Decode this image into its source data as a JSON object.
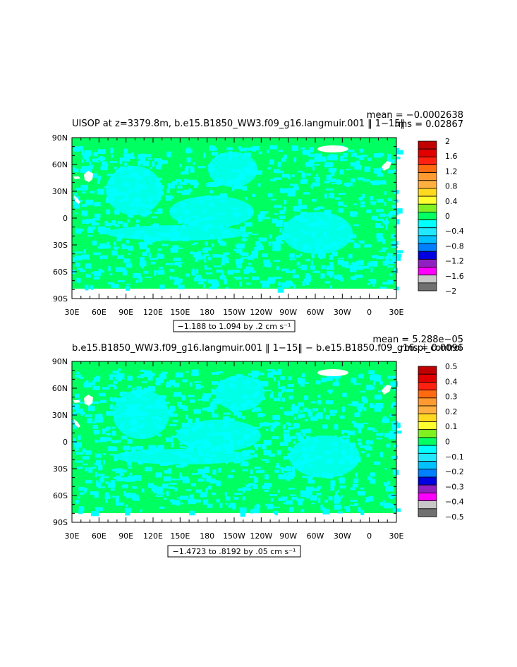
{
  "chart_data": [
    {
      "type": "heatmap",
      "title": "UISOP at z=3379.8m, b.e15.B1850_WW3.f09_g16.langmuir.001 ‖ 1−15‖",
      "stats": {
        "mean": "mean = −0.0002638",
        "rms": "rms = 0.02867"
      },
      "range_label": "−1.188 to 1.094 by .2 cm s⁻¹",
      "x_ticks": [
        "30E",
        "60E",
        "90E",
        "120E",
        "150E",
        "180",
        "150W",
        "120W",
        "90W",
        "60W",
        "30W",
        "0",
        "30E"
      ],
      "y_ticks": [
        "90N",
        "60N",
        "30N",
        "0",
        "30S",
        "60S",
        "90S"
      ],
      "xlim": [
        30,
        390
      ],
      "ylim": [
        -90,
        90
      ],
      "colorbar": {
        "colors": [
          "#c00000",
          "#e00000",
          "#ff2010",
          "#ff6a10",
          "#ff9a30",
          "#ffb040",
          "#ffd820",
          "#ffff30",
          "#80f020",
          "#00ff60",
          "#00ffff",
          "#20e8ff",
          "#00c0ff",
          "#0080ff",
          "#0000e0",
          "#9020c0",
          "#ff00ff",
          "#c8c8c8",
          "#707070"
        ],
        "labels": [
          "2",
          "1.6",
          "1.2",
          "0.8",
          "0.4",
          "0",
          "−0.4",
          "−0.8",
          "−1.2",
          "−1.6",
          "−2"
        ],
        "label_slots": [
          0,
          2,
          4,
          6,
          8,
          10,
          12,
          14,
          16,
          18,
          20
        ]
      },
      "dominant_color": "#00ff60",
      "secondary_color": "#00ffff"
    },
    {
      "type": "heatmap",
      "title": "b.e15.B1850_WW3.f09_g16.langmuir.001 ‖ 1−15‖ − b.e15.B1850.f09_g16.pi_control",
      "stats": {
        "mean": "mean = 5.288e−05",
        "rms": "rms = 0.0096"
      },
      "range_label": "−1.4723 to .8192 by .05 cm s⁻¹",
      "x_ticks": [
        "30E",
        "60E",
        "90E",
        "120E",
        "150E",
        "180",
        "150W",
        "120W",
        "90W",
        "60W",
        "30W",
        "0",
        "30E"
      ],
      "y_ticks": [
        "90N",
        "60N",
        "30N",
        "0",
        "30S",
        "60S",
        "90S"
      ],
      "xlim": [
        30,
        390
      ],
      "ylim": [
        -90,
        90
      ],
      "colorbar": {
        "colors": [
          "#c00000",
          "#e00000",
          "#ff2010",
          "#ff6a10",
          "#ff9a30",
          "#ffb040",
          "#ffd820",
          "#ffff30",
          "#80f020",
          "#00ff60",
          "#00ffff",
          "#20e8ff",
          "#00c0ff",
          "#0080ff",
          "#0000e0",
          "#9020c0",
          "#ff00ff",
          "#c8c8c8",
          "#707070"
        ],
        "labels": [
          "0.5",
          "0.4",
          "0.3",
          "0.2",
          "0.1",
          "0",
          "−0.1",
          "−0.2",
          "−0.3",
          "−0.4",
          "−0.5"
        ],
        "label_slots": [
          0,
          2,
          4,
          6,
          8,
          10,
          12,
          14,
          16,
          18,
          20
        ]
      },
      "dominant_color": "#00ff60",
      "secondary_color": "#00ffff"
    }
  ]
}
